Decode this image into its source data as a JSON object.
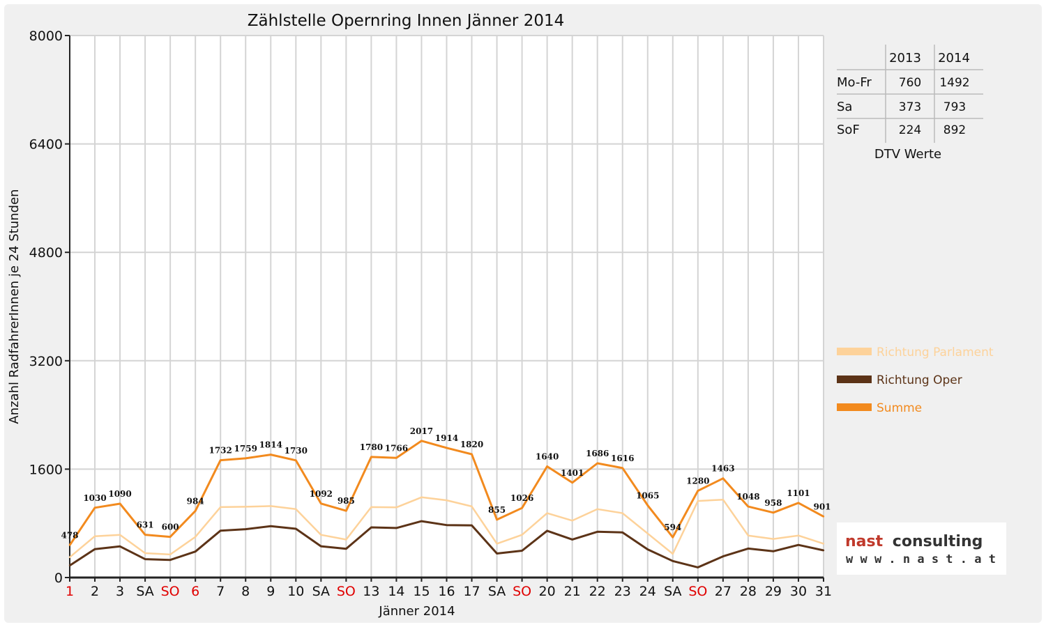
{
  "chart_data": {
    "type": "line",
    "title": "Zählstelle Opernring Innen Jänner 2014",
    "xlabel": "Jänner 2014",
    "ylabel": "Anzahl RadfahrerInnen je 24 Stunden",
    "ylim": [
      0,
      8000
    ],
    "yticks": [
      "0",
      "1600",
      "3200",
      "4800",
      "6400",
      "8000"
    ],
    "grid": true,
    "legend_position": "right",
    "categories": [
      "1",
      "2",
      "3",
      "SA",
      "SO",
      "6",
      "7",
      "8",
      "9",
      "10",
      "SA",
      "SO",
      "13",
      "14",
      "15",
      "16",
      "17",
      "SA",
      "SO",
      "20",
      "21",
      "22",
      "23",
      "24",
      "SA",
      "SO",
      "27",
      "28",
      "29",
      "30",
      "31"
    ],
    "category_colors": [
      "#e00000",
      "#111111",
      "#111111",
      "#111111",
      "#e00000",
      "#e00000",
      "#111111",
      "#111111",
      "#111111",
      "#111111",
      "#111111",
      "#e00000",
      "#111111",
      "#111111",
      "#111111",
      "#111111",
      "#111111",
      "#111111",
      "#e00000",
      "#111111",
      "#111111",
      "#111111",
      "#111111",
      "#111111",
      "#111111",
      "#e00000",
      "#111111",
      "#111111",
      "#111111",
      "#111111",
      "#111111"
    ],
    "series": [
      {
        "name": "Richtung Parlament",
        "color": "#fdd29a",
        "values": [
          300,
          610,
          630,
          360,
          340,
          600,
          1040,
          1045,
          1055,
          1010,
          630,
          560,
          1040,
          1035,
          1185,
          1140,
          1050,
          500,
          630,
          950,
          840,
          1010,
          950,
          650,
          350,
          1130,
          1150,
          620,
          570,
          620,
          500
        ]
      },
      {
        "name": "Richtung Oper",
        "color": "#5c3317",
        "values": [
          178,
          420,
          460,
          271,
          260,
          384,
          692,
          714,
          759,
          720,
          462,
          425,
          740,
          731,
          832,
          774,
          770,
          355,
          396,
          690,
          561,
          676,
          666,
          415,
          244,
          150,
          313,
          428,
          388,
          481,
          401
        ]
      },
      {
        "name": "Summe",
        "color": "#f28a1e",
        "values": [
          478,
          1030,
          1090,
          631,
          600,
          984,
          1732,
          1759,
          1814,
          1730,
          1092,
          985,
          1780,
          1766,
          2017,
          1914,
          1820,
          855,
          1026,
          1640,
          1401,
          1686,
          1616,
          1065,
          594,
          1280,
          1463,
          1048,
          958,
          1101,
          901
        ],
        "labels": [
          "478",
          "1030",
          "1090",
          "631",
          "600",
          "984",
          "1732",
          "1759",
          "1814",
          "1730",
          "1092",
          "985",
          "1780",
          "1766",
          "2017",
          "1914",
          "1820",
          "855",
          "1026",
          "1640",
          "1401",
          "1686",
          "1616",
          "1065",
          "594",
          "1280",
          "1463",
          "1048",
          "958",
          "1101",
          "901"
        ]
      }
    ]
  },
  "dtv_table": {
    "headers": [
      "",
      "2013",
      "2014"
    ],
    "rows": [
      {
        "label": "Mo-Fr",
        "v2013": "760",
        "v2014": "1492"
      },
      {
        "label": "Sa",
        "v2013": "373",
        "v2014": "793"
      },
      {
        "label": "SoF",
        "v2013": "224",
        "v2014": "892"
      }
    ],
    "caption": "DTV Werte"
  },
  "logo": {
    "brand_part1": "nast",
    "brand_part2": "consulting",
    "url": "w w w . n a s t . a t",
    "color1": "#c0392b",
    "color2": "#333333"
  }
}
